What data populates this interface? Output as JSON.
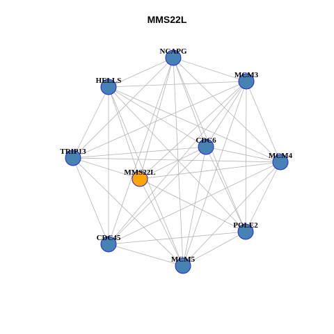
{
  "title": "MMS22L",
  "colors": {
    "node_fill": "#4682b4",
    "node_stroke": "#2424d6",
    "highlight_fill": "#ffa500",
    "edge": "#b4b4b4",
    "label": "#000000"
  },
  "nodes": [
    {
      "id": "NCAPG",
      "label": "NCAPG",
      "highlight": false
    },
    {
      "id": "MCM3",
      "label": "MCM3",
      "highlight": false
    },
    {
      "id": "HELLS",
      "label": "HELLS",
      "highlight": false
    },
    {
      "id": "CDC6",
      "label": "CDC6",
      "highlight": false
    },
    {
      "id": "TRIP13",
      "label": "TRIP13",
      "highlight": false
    },
    {
      "id": "MCM4",
      "label": "MCM4",
      "highlight": false
    },
    {
      "id": "MMS22L",
      "label": "MMS22L",
      "highlight": true
    },
    {
      "id": "POLE2",
      "label": "POLE2",
      "highlight": false
    },
    {
      "id": "CDC45",
      "label": "CDC45",
      "highlight": false
    },
    {
      "id": "MCM5",
      "label": "MCM5",
      "highlight": false
    }
  ],
  "edges": [
    [
      "NCAPG",
      "MCM3"
    ],
    [
      "NCAPG",
      "HELLS"
    ],
    [
      "NCAPG",
      "CDC6"
    ],
    [
      "NCAPG",
      "TRIP13"
    ],
    [
      "NCAPG",
      "MCM4"
    ],
    [
      "NCAPG",
      "MMS22L"
    ],
    [
      "NCAPG",
      "POLE2"
    ],
    [
      "NCAPG",
      "CDC45"
    ],
    [
      "NCAPG",
      "MCM5"
    ],
    [
      "MCM3",
      "HELLS"
    ],
    [
      "MCM3",
      "CDC6"
    ],
    [
      "MCM3",
      "TRIP13"
    ],
    [
      "MCM3",
      "MCM4"
    ],
    [
      "MCM3",
      "MMS22L"
    ],
    [
      "MCM3",
      "POLE2"
    ],
    [
      "MCM3",
      "CDC45"
    ],
    [
      "MCM3",
      "MCM5"
    ],
    [
      "HELLS",
      "CDC6"
    ],
    [
      "HELLS",
      "TRIP13"
    ],
    [
      "HELLS",
      "MCM4"
    ],
    [
      "HELLS",
      "MMS22L"
    ],
    [
      "HELLS",
      "POLE2"
    ],
    [
      "HELLS",
      "CDC45"
    ],
    [
      "HELLS",
      "MCM5"
    ],
    [
      "CDC6",
      "TRIP13"
    ],
    [
      "CDC6",
      "MCM4"
    ],
    [
      "CDC6",
      "MMS22L"
    ],
    [
      "CDC6",
      "POLE2"
    ],
    [
      "CDC6",
      "CDC45"
    ],
    [
      "CDC6",
      "MCM5"
    ],
    [
      "TRIP13",
      "MCM4"
    ],
    [
      "TRIP13",
      "MMS22L"
    ],
    [
      "TRIP13",
      "CDC45"
    ],
    [
      "TRIP13",
      "MCM5"
    ],
    [
      "MCM4",
      "MMS22L"
    ],
    [
      "MCM4",
      "POLE2"
    ],
    [
      "MCM4",
      "CDC45"
    ],
    [
      "MCM4",
      "MCM5"
    ],
    [
      "MMS22L",
      "POLE2"
    ],
    [
      "MMS22L",
      "MCM5"
    ],
    [
      "POLE2",
      "CDC45"
    ],
    [
      "POLE2",
      "MCM5"
    ],
    [
      "CDC45",
      "MCM5"
    ]
  ]
}
